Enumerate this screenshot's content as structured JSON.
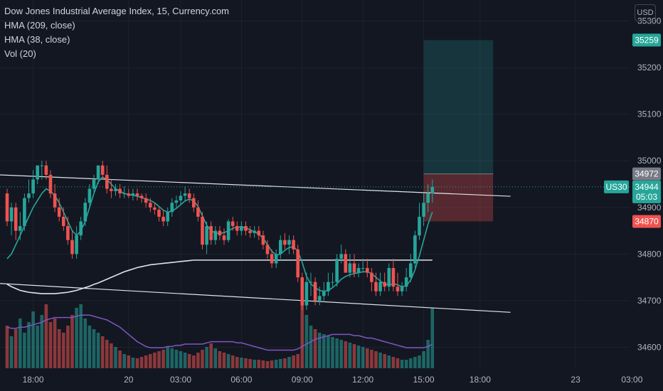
{
  "legend": {
    "title": "Dow Jones Industrial Average Index, 15, Currency.com",
    "indicator_1": "HMA (209, close)",
    "indicator_2": "HMA (38, close)",
    "indicator_3": "Vol (20)"
  },
  "currency_button": "USD",
  "colors": {
    "background": "#131722",
    "grid": "#1e222d",
    "text": "#b2b5be",
    "up": "#26a69a",
    "down": "#ef5350",
    "hma_long": "#e0e3eb",
    "hma_short": "#26a69a",
    "vol_ma": "#7e57c2",
    "trendline": "#e0e3eb",
    "price_line": "#26a69a",
    "profit_zone": "#26a69a",
    "loss_zone": "#ef5350"
  },
  "chart_data": {
    "type": "candlestick",
    "title": "Dow Jones Industrial Average Index, 15, Currency.com",
    "ylim": [
      34555,
      35345
    ],
    "y_ticks": [
      34600,
      34700,
      34800,
      34900,
      35000,
      35100,
      35200,
      35300
    ],
    "x_ticks": [
      {
        "label": "18:00",
        "index": 6
      },
      {
        "label": "20",
        "index": 28
      },
      {
        "label": "03:00",
        "index": 40
      },
      {
        "label": "06:00",
        "index": 54
      },
      {
        "label": "09:00",
        "index": 68
      },
      {
        "label": "12:00",
        "index": 82
      },
      {
        "label": "15:00",
        "index": 96
      },
      {
        "label": "18:00",
        "index": 109
      },
      {
        "label": "23",
        "index": 131
      },
      {
        "label": "03:00",
        "index": 144
      }
    ],
    "candles": {
      "open": [
        34930,
        34870,
        34900,
        34850,
        34860,
        34920,
        34930,
        34960,
        34990,
        34990,
        34970,
        34930,
        34900,
        34880,
        34860,
        34830,
        34800,
        34840,
        34870,
        34910,
        34940,
        34960,
        34990,
        34970,
        34940,
        34935,
        34940,
        34930,
        34930,
        34925,
        34930,
        34925,
        34920,
        34910,
        34900,
        34895,
        34880,
        34870,
        34890,
        34910,
        34915,
        34925,
        34930,
        34920,
        34900,
        34880,
        34820,
        34860,
        34830,
        34850,
        34840,
        34830,
        34870,
        34860,
        34850,
        34860,
        34850,
        34845,
        34850,
        34840,
        34820,
        34800,
        34780,
        34800,
        34830,
        34820,
        34830,
        34810,
        34750,
        34690,
        34740,
        34740,
        34700,
        34710,
        34720,
        34740,
        34740,
        34790,
        34800,
        34760,
        34780,
        34760,
        34770,
        34770,
        34760,
        34740,
        34720,
        34740,
        34730,
        34770,
        34730,
        34720,
        34730,
        34750,
        34780,
        34840,
        34880,
        34910,
        34930
      ],
      "high": [
        34940,
        34910,
        34910,
        34890,
        34930,
        34960,
        34980,
        34990,
        35000,
        35000,
        34980,
        34950,
        34920,
        34900,
        34880,
        34850,
        34860,
        34880,
        34920,
        34950,
        34970,
        34990,
        35000,
        34990,
        34960,
        34950,
        34950,
        34945,
        34940,
        34940,
        34940,
        34930,
        34930,
        34920,
        34910,
        34900,
        34895,
        34900,
        34920,
        34925,
        34935,
        34945,
        34940,
        34930,
        34915,
        34890,
        34870,
        34870,
        34860,
        34860,
        34855,
        34875,
        34880,
        34870,
        34870,
        34870,
        34860,
        34860,
        34860,
        34850,
        34830,
        34810,
        34810,
        34840,
        34845,
        34840,
        34840,
        34820,
        34760,
        34760,
        34760,
        34750,
        34730,
        34740,
        34760,
        34760,
        34800,
        34820,
        34810,
        34800,
        34800,
        34780,
        34790,
        34790,
        34770,
        34760,
        34760,
        34760,
        34780,
        34790,
        34760,
        34740,
        34770,
        34800,
        34850,
        34910,
        34930,
        34950,
        34960
      ],
      "low": [
        34860,
        34840,
        34830,
        34830,
        34850,
        34910,
        34920,
        34950,
        34960,
        34960,
        34920,
        34890,
        34870,
        34850,
        34820,
        34790,
        34790,
        34830,
        34860,
        34900,
        34930,
        34950,
        34960,
        34930,
        34920,
        34925,
        34920,
        34920,
        34920,
        34915,
        34915,
        34910,
        34900,
        34890,
        34885,
        34870,
        34860,
        34860,
        34880,
        34900,
        34905,
        34915,
        34910,
        34890,
        34870,
        34810,
        34800,
        34820,
        34820,
        34830,
        34820,
        34825,
        34850,
        34840,
        34840,
        34840,
        34835,
        34835,
        34830,
        34810,
        34790,
        34770,
        34770,
        34790,
        34810,
        34800,
        34800,
        34740,
        34680,
        34680,
        34710,
        34690,
        34690,
        34700,
        34710,
        34730,
        34730,
        34780,
        34760,
        34750,
        34750,
        34750,
        34760,
        34750,
        34720,
        34710,
        34710,
        34720,
        34720,
        34720,
        34710,
        34710,
        34720,
        34740,
        34770,
        34830,
        34860,
        34890,
        34910
      ],
      "close": [
        34870,
        34900,
        34850,
        34860,
        34920,
        34930,
        34960,
        34990,
        34990,
        34970,
        34930,
        34900,
        34880,
        34860,
        34830,
        34800,
        34840,
        34870,
        34910,
        34940,
        34960,
        34990,
        34970,
        34940,
        34935,
        34940,
        34930,
        34930,
        34925,
        34930,
        34925,
        34920,
        34910,
        34900,
        34895,
        34880,
        34870,
        34890,
        34910,
        34915,
        34925,
        34930,
        34920,
        34900,
        34880,
        34820,
        34860,
        34830,
        34850,
        34840,
        34830,
        34870,
        34860,
        34850,
        34860,
        34850,
        34845,
        34850,
        34840,
        34820,
        34800,
        34780,
        34800,
        34830,
        34820,
        34830,
        34810,
        34750,
        34690,
        34740,
        34740,
        34700,
        34710,
        34720,
        34740,
        34740,
        34790,
        34800,
        34760,
        34780,
        34760,
        34770,
        34770,
        34760,
        34740,
        34720,
        34740,
        34730,
        34770,
        34730,
        34720,
        34730,
        34750,
        34780,
        34840,
        34880,
        34910,
        34930,
        34944
      ]
    },
    "volume": [
      60,
      45,
      55,
      70,
      50,
      65,
      80,
      60,
      75,
      90,
      65,
      70,
      55,
      50,
      60,
      75,
      85,
      90,
      70,
      60,
      55,
      50,
      45,
      40,
      35,
      30,
      25,
      20,
      18,
      15,
      14,
      16,
      18,
      20,
      22,
      24,
      26,
      30,
      28,
      26,
      24,
      22,
      20,
      18,
      22,
      26,
      30,
      35,
      28,
      24,
      22,
      20,
      18,
      16,
      15,
      14,
      13,
      12,
      12,
      11,
      10,
      11,
      12,
      13,
      14,
      16,
      18,
      20,
      90,
      75,
      60,
      55,
      50,
      48,
      46,
      44,
      42,
      40,
      38,
      36,
      34,
      32,
      30,
      28,
      26,
      24,
      22,
      20,
      18,
      16,
      14,
      12,
      12,
      14,
      16,
      18,
      24,
      40,
      85
    ],
    "volume_ma": [
      34,
      33,
      33,
      34,
      34,
      35,
      36,
      37,
      38,
      40,
      41,
      42,
      42,
      42,
      42,
      42,
      43,
      44,
      44,
      44,
      43,
      42,
      41,
      40,
      38,
      36,
      34,
      31,
      28,
      25,
      22,
      20,
      18,
      17,
      17,
      17,
      17,
      18,
      18,
      19,
      19,
      20,
      20,
      20,
      20,
      20,
      21,
      22,
      22,
      22,
      22,
      22,
      22,
      21,
      21,
      20,
      19,
      18,
      17,
      16,
      15,
      15,
      15,
      15,
      15,
      15,
      15,
      16,
      18,
      20,
      22,
      24,
      25,
      26,
      27,
      28,
      28,
      28,
      28,
      28,
      27,
      27,
      26,
      25,
      25,
      24,
      23,
      22,
      21,
      20,
      19,
      18,
      17,
      17,
      17,
      17,
      17,
      18,
      20
    ],
    "hma_long": [
      34735,
      34730,
      34726,
      34722,
      34720,
      34718,
      34717,
      34716,
      34715,
      34715,
      34715,
      34715,
      34716,
      34717,
      34718,
      34720,
      34722,
      34725,
      34728,
      34731,
      34735,
      34738,
      34742,
      34746,
      34750,
      34754,
      34758,
      34762,
      34765,
      34768,
      34771,
      34773,
      34775,
      34777,
      34778,
      34779,
      34780,
      34781,
      34782,
      34783,
      34784,
      34785,
      34786,
      34787,
      34787,
      34787,
      34787,
      34787,
      34787,
      34787,
      34787,
      34787,
      34787,
      34787,
      34787,
      34787,
      34787,
      34787,
      34787,
      34787,
      34787,
      34787,
      34787,
      34787,
      34787,
      34787,
      34787,
      34787,
      34787,
      34787,
      34787,
      34787,
      34787,
      34787,
      34787,
      34787,
      34787,
      34787,
      34787,
      34787,
      34787,
      34787,
      34787,
      34787,
      34787,
      34787,
      34787,
      34787,
      34787,
      34787,
      34787,
      34787,
      34787,
      34787,
      34787,
      34787,
      34787,
      34787,
      34787
    ],
    "hma_short": [
      34790,
      34800,
      34820,
      34840,
      34860,
      34880,
      34900,
      34915,
      34930,
      34940,
      34935,
      34925,
      34910,
      34890,
      34870,
      34850,
      34840,
      34850,
      34870,
      34900,
      34930,
      34955,
      34965,
      34960,
      34950,
      34940,
      34935,
      34930,
      34928,
      34926,
      34924,
      34921,
      34918,
      34915,
      34910,
      34902,
      34894,
      34890,
      34892,
      34898,
      34906,
      34914,
      34918,
      34914,
      34902,
      34882,
      34862,
      34850,
      34845,
      34844,
      34846,
      34850,
      34855,
      34858,
      34858,
      34856,
      34852,
      34848,
      34843,
      34834,
      34820,
      34806,
      34798,
      34800,
      34808,
      34814,
      34816,
      34806,
      34782,
      34752,
      34736,
      34728,
      34722,
      34720,
      34722,
      34728,
      34736,
      34746,
      34752,
      34756,
      34758,
      34760,
      34762,
      34762,
      34758,
      34750,
      34742,
      34736,
      34734,
      34736,
      34734,
      34730,
      34732,
      34744,
      34766,
      34796,
      34830,
      34864,
      34890
    ],
    "trendlines": [
      {
        "from": {
          "index": -2,
          "price": 34970
        },
        "to": {
          "index": 116,
          "price": 34924
        }
      },
      {
        "from": {
          "index": -2,
          "price": 34737
        },
        "to": {
          "index": 116,
          "price": 34675
        }
      }
    ],
    "position": {
      "type": "long",
      "start_index": 96,
      "end_index": 112,
      "entry": 34972,
      "target": 35259,
      "stop": 34870
    },
    "price_labels": {
      "target": "35259",
      "entry": "34972",
      "last": "34944",
      "countdown": "05:03",
      "stop": "34870",
      "symbol": "US30"
    }
  }
}
